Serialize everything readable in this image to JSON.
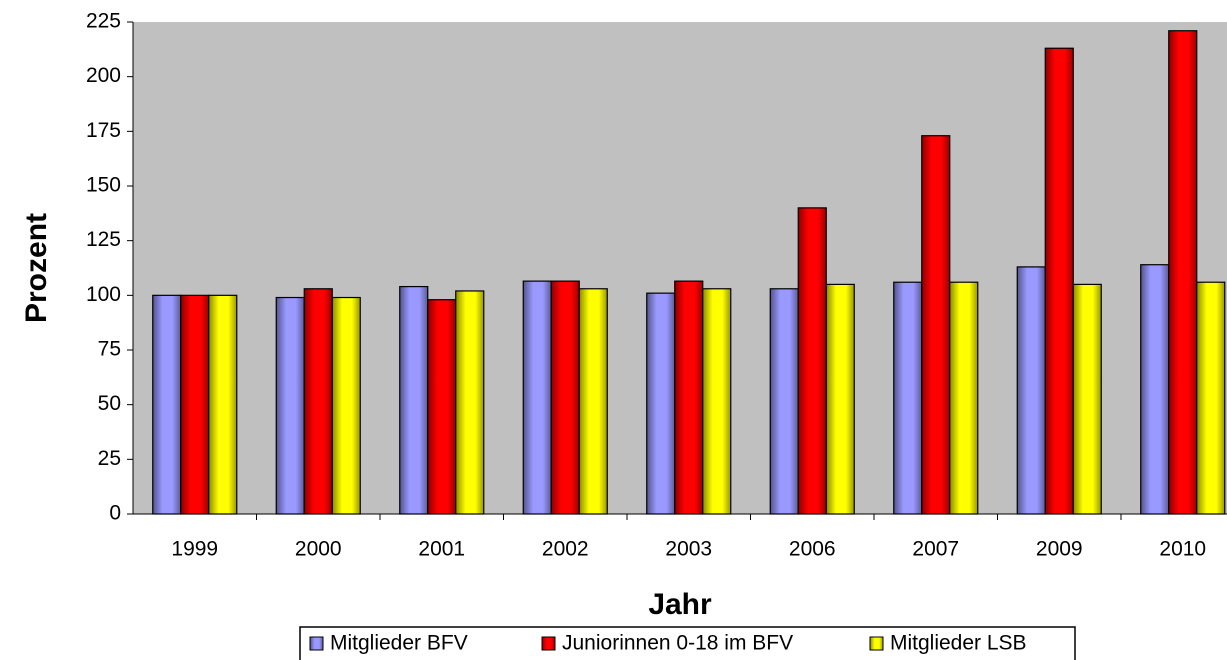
{
  "chart_data": {
    "type": "bar",
    "x_label": "Jahr",
    "y_label": "Prozent",
    "categories": [
      "1999",
      "2000",
      "2001",
      "2002",
      "2003",
      "2006",
      "2007",
      "2009",
      "2010"
    ],
    "series": [
      {
        "name": "Mitglieder BFV",
        "color": "#9999ff",
        "values": [
          100,
          99,
          104,
          106.5,
          101,
          103,
          106,
          113,
          114
        ]
      },
      {
        "name": "Juniorinnen 0-18 im BFV",
        "color": "#ff0000",
        "values": [
          100,
          103,
          98,
          106.5,
          106.5,
          140,
          173,
          213,
          221
        ]
      },
      {
        "name": "Mitglieder LSB",
        "color": "#ffff00",
        "values": [
          100,
          99,
          102,
          103,
          103,
          105,
          106,
          105,
          106
        ]
      }
    ],
    "ylim": [
      0,
      225
    ],
    "yticks": [
      0,
      25,
      50,
      75,
      100,
      125,
      150,
      175,
      200,
      225
    ],
    "legend": "bottom"
  }
}
